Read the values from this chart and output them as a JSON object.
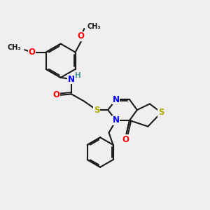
{
  "bg_color": "#EFEFEF",
  "bond_color": "#1a1a1a",
  "bond_width": 1.5,
  "atom_colors": {
    "O": "#FF0000",
    "N": "#0000EE",
    "S": "#AAAA00",
    "H": "#4a9a9a",
    "C": "#1a1a1a"
  },
  "font_size_atom": 8.5,
  "font_size_small": 7.0
}
